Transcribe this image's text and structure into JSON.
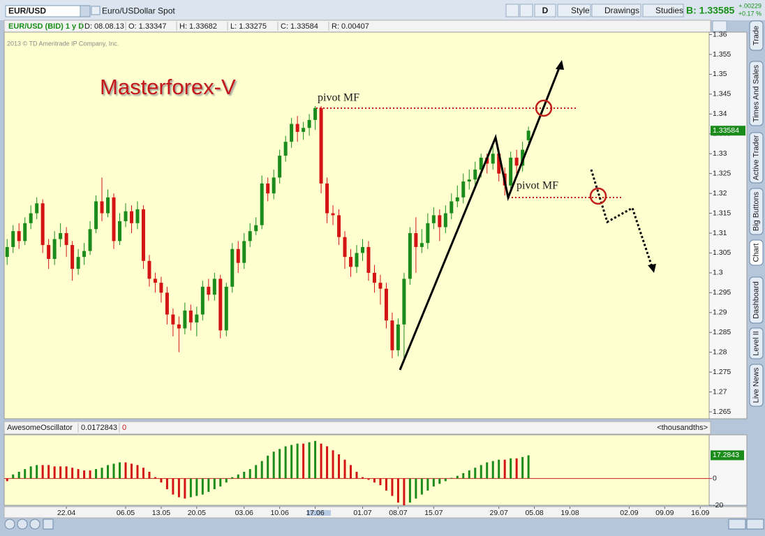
{
  "toolbar": {
    "symbol": "EUR/USD",
    "description": "Euro/USDollar Spot",
    "period": "D",
    "style": "Style",
    "drawings": "Drawings",
    "studies": "Studies",
    "bid": "B: 1.33585",
    "change": "+.00229",
    "change_pct": "+0.17 %"
  },
  "info_bar": [
    "EUR/USD (BID) 1 y D",
    "D: 08.08.13",
    "O: 1.33347",
    "H: 1.33682",
    "L: 1.33275",
    "C: 1.33584",
    "R: 0.00407"
  ],
  "copyright": "2013 © TD Ameritrade IP Company, Inc.",
  "side_tabs": [
    "Trade",
    "Times And Sales",
    "Active Trader",
    "Big Buttons",
    "Chart",
    "Dashboard",
    "Level II",
    "Live News"
  ],
  "chart_data": [
    {
      "type": "candlestick",
      "title": "Masterforex-V",
      "pivot_labels": [
        "pivot MF",
        "pivot MF"
      ],
      "last_label": "1.33584",
      "colors": {
        "up": "#1b8c1b",
        "down": "#d41414"
      },
      "xlim": [
        -0.5,
        118.5
      ],
      "xticks": [
        {
          "value": 10,
          "label": "22.04"
        },
        {
          "value": 20,
          "label": "06.05"
        },
        {
          "value": 26,
          "label": "13.05"
        },
        {
          "value": 32,
          "label": "20.05"
        },
        {
          "value": 40,
          "label": "03.06"
        },
        {
          "value": 46,
          "label": "10.06"
        },
        {
          "value": 52,
          "label": "17.06"
        },
        {
          "value": 60,
          "label": "01.07"
        },
        {
          "value": 66,
          "label": "08.07"
        },
        {
          "value": 72,
          "label": "15.07"
        },
        {
          "value": 83,
          "label": "29.07"
        },
        {
          "value": 89,
          "label": "05.08"
        },
        {
          "value": 95,
          "label": "19.08"
        },
        {
          "value": 105,
          "label": "02.09"
        },
        {
          "value": 111,
          "label": "09.09"
        },
        {
          "value": 117,
          "label": "16.09"
        }
      ],
      "ylim": [
        1.2636,
        1.3608
      ],
      "yticks": [
        1.36,
        1.355,
        1.35,
        1.345,
        1.34,
        1.335,
        1.33,
        1.325,
        1.32,
        1.315,
        1.31,
        1.305,
        1.3,
        1.295,
        1.29,
        1.285,
        1.28,
        1.275,
        1.27,
        1.265
      ],
      "open": [
        1.304,
        1.3065,
        1.3105,
        1.308,
        1.3125,
        1.315,
        1.3175,
        1.307,
        1.3035,
        1.3085,
        1.31,
        1.307,
        1.301,
        1.304,
        1.3055,
        1.311,
        1.318,
        1.315,
        1.319,
        1.308,
        1.313,
        1.3155,
        1.3125,
        1.316,
        1.303,
        1.2985,
        1.2975,
        1.295,
        1.2895,
        1.287,
        1.286,
        1.2905,
        1.2875,
        1.2895,
        1.2965,
        1.2945,
        1.2985,
        1.2855,
        1.2965,
        1.306,
        1.3025,
        1.308,
        1.3105,
        1.312,
        1.3225,
        1.32,
        1.324,
        1.3295,
        1.333,
        1.3375,
        1.3355,
        1.3365,
        1.3385,
        1.3415,
        1.3225,
        1.315,
        1.3145,
        1.309,
        1.304,
        1.3015,
        1.305,
        1.3065,
        1.3,
        1.2975,
        1.296,
        1.288,
        1.2805,
        1.287,
        1.2985,
        1.31,
        1.3065,
        1.3075,
        1.3125,
        1.3145,
        1.3115,
        1.315,
        1.318,
        1.319,
        1.323,
        1.3235,
        1.326,
        1.329,
        1.3275,
        1.33,
        1.325,
        1.322,
        1.329,
        1.327,
        1.3334
      ],
      "high": [
        1.3085,
        1.312,
        1.3125,
        1.314,
        1.317,
        1.319,
        1.3185,
        1.3085,
        1.3105,
        1.3125,
        1.3115,
        1.308,
        1.306,
        1.3075,
        1.313,
        1.3195,
        1.324,
        1.321,
        1.32,
        1.315,
        1.3175,
        1.317,
        1.318,
        1.317,
        1.3045,
        1.3,
        1.299,
        1.2965,
        1.291,
        1.289,
        1.2925,
        1.292,
        1.2915,
        1.298,
        1.2985,
        1.3,
        1.2995,
        1.2975,
        1.3075,
        1.308,
        1.31,
        1.3125,
        1.314,
        1.3245,
        1.324,
        1.326,
        1.331,
        1.3345,
        1.339,
        1.3395,
        1.338,
        1.34,
        1.342,
        1.342,
        1.324,
        1.317,
        1.316,
        1.3105,
        1.306,
        1.307,
        1.3085,
        1.308,
        1.302,
        1.2995,
        1.2975,
        1.29,
        1.2885,
        1.3,
        1.3115,
        1.314,
        1.311,
        1.315,
        1.3165,
        1.316,
        1.317,
        1.32,
        1.322,
        1.325,
        1.326,
        1.328,
        1.33,
        1.33,
        1.332,
        1.331,
        1.3265,
        1.3305,
        1.331,
        1.333,
        1.3368
      ],
      "low": [
        1.302,
        1.305,
        1.306,
        1.307,
        1.311,
        1.3135,
        1.305,
        1.301,
        1.302,
        1.3065,
        1.304,
        1.298,
        1.2995,
        1.302,
        1.3045,
        1.31,
        1.313,
        1.314,
        1.306,
        1.307,
        1.3115,
        1.31,
        1.311,
        1.301,
        1.2965,
        1.295,
        1.2925,
        1.287,
        1.284,
        1.28,
        1.2845,
        1.2855,
        1.284,
        1.288,
        1.293,
        1.293,
        1.2835,
        1.284,
        1.295,
        1.3,
        1.301,
        1.3065,
        1.3095,
        1.311,
        1.318,
        1.3185,
        1.3225,
        1.328,
        1.3315,
        1.333,
        1.3335,
        1.3345,
        1.336,
        1.32,
        1.3125,
        1.312,
        1.307,
        1.301,
        1.299,
        1.3,
        1.303,
        1.298,
        1.295,
        1.292,
        1.286,
        1.2785,
        1.279,
        1.2775,
        1.297,
        1.3,
        1.305,
        1.306,
        1.311,
        1.308,
        1.31,
        1.3135,
        1.3165,
        1.3175,
        1.321,
        1.322,
        1.324,
        1.325,
        1.326,
        1.323,
        1.3195,
        1.3205,
        1.325,
        1.3255,
        1.3327
      ],
      "close": [
        1.3065,
        1.3105,
        1.308,
        1.3125,
        1.315,
        1.3175,
        1.307,
        1.3035,
        1.3085,
        1.31,
        1.307,
        1.301,
        1.304,
        1.3055,
        1.311,
        1.318,
        1.315,
        1.319,
        1.308,
        1.313,
        1.3155,
        1.3125,
        1.316,
        1.303,
        1.2985,
        1.2975,
        1.295,
        1.2895,
        1.287,
        1.286,
        1.2905,
        1.2875,
        1.2895,
        1.2965,
        1.2945,
        1.2985,
        1.2855,
        1.2965,
        1.306,
        1.3025,
        1.308,
        1.3105,
        1.312,
        1.3225,
        1.32,
        1.324,
        1.3295,
        1.333,
        1.3375,
        1.3355,
        1.3365,
        1.3385,
        1.3415,
        1.3225,
        1.315,
        1.3145,
        1.309,
        1.304,
        1.3015,
        1.305,
        1.3065,
        1.3,
        1.2975,
        1.296,
        1.288,
        1.2805,
        1.287,
        1.2985,
        1.31,
        1.3065,
        1.3075,
        1.3125,
        1.3145,
        1.3115,
        1.315,
        1.318,
        1.319,
        1.323,
        1.3235,
        1.326,
        1.329,
        1.3275,
        1.33,
        1.325,
        1.322,
        1.329,
        1.327,
        1.331,
        1.3358
      ]
    },
    {
      "type": "bar",
      "name": "AwesomeOscillator",
      "value_text": "0.0172843",
      "flag": "0",
      "unit": "<thousandths>",
      "colors": {
        "up": "#1b8c1b",
        "down": "#d41414"
      },
      "ylim": [
        -20,
        31
      ],
      "yticks": [
        0,
        -20
      ],
      "values": [
        -2,
        3,
        5,
        7,
        9,
        10,
        10,
        10,
        9,
        9,
        9,
        8,
        7,
        6,
        6,
        7,
        8,
        10,
        11,
        12,
        12,
        11,
        10,
        8,
        5,
        1,
        -3,
        -8,
        -12,
        -14,
        -15,
        -14,
        -13,
        -12,
        -10,
        -8,
        -6,
        -3,
        1,
        3,
        5,
        7,
        10,
        13,
        17,
        20,
        22,
        24,
        25,
        26,
        26,
        27,
        28,
        26,
        24,
        21,
        18,
        14,
        10,
        5,
        1,
        -1,
        -3,
        -5,
        -9,
        -13,
        -18,
        -20,
        -18,
        -15,
        -12,
        -9,
        -6,
        -4,
        -2,
        0.5,
        2,
        4,
        6,
        8,
        10,
        12,
        13,
        14,
        14,
        15,
        15,
        16,
        17.2843
      ]
    }
  ]
}
